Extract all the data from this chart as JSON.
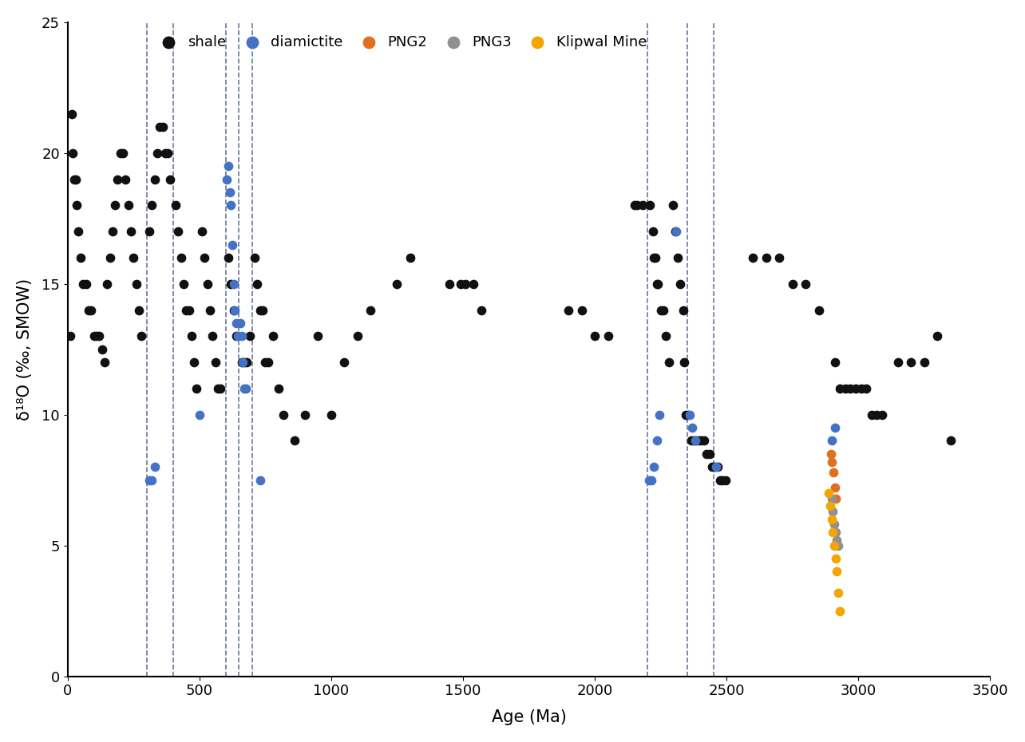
{
  "xlabel": "Age (Ma)",
  "ylabel": "δ¹⁸O (‰, SMOW)",
  "xlim": [
    0,
    3500
  ],
  "ylim": [
    0,
    25
  ],
  "xticks": [
    0,
    500,
    1000,
    1500,
    2000,
    2500,
    3000,
    3500
  ],
  "yticks": [
    0,
    5,
    10,
    15,
    20,
    25
  ],
  "dashed_lines": [
    300,
    400,
    600,
    650,
    700,
    2200,
    2350,
    2450
  ],
  "shale_x": [
    10,
    15,
    20,
    25,
    30,
    35,
    40,
    50,
    60,
    70,
    80,
    90,
    100,
    110,
    120,
    130,
    140,
    150,
    160,
    170,
    180,
    190,
    200,
    210,
    220,
    230,
    240,
    250,
    260,
    270,
    280,
    310,
    320,
    330,
    340,
    350,
    360,
    370,
    380,
    390,
    410,
    420,
    430,
    440,
    450,
    460,
    470,
    480,
    490,
    510,
    520,
    530,
    540,
    550,
    560,
    570,
    580,
    610,
    620,
    630,
    640,
    660,
    670,
    680,
    690,
    710,
    720,
    730,
    740,
    750,
    760,
    780,
    800,
    820,
    860,
    900,
    950,
    1000,
    1050,
    1100,
    1150,
    1250,
    1300,
    1450,
    1490,
    1510,
    1540,
    1570,
    1900,
    1950,
    2000,
    2050,
    2150,
    2160,
    2180,
    2210,
    2220,
    2225,
    2230,
    2235,
    2240,
    2250,
    2260,
    2270,
    2280,
    2295,
    2305,
    2315,
    2325,
    2335,
    2340,
    2345,
    2355,
    2365,
    2375,
    2385,
    2395,
    2405,
    2415,
    2425,
    2435,
    2445,
    2455,
    2465,
    2475,
    2485,
    2495,
    2600,
    2650,
    2700,
    2750,
    2800,
    2850,
    2910,
    2930,
    2950,
    2970,
    2990,
    3010,
    3030,
    3050,
    3070,
    3090,
    3150,
    3200,
    3250,
    3300,
    3350
  ],
  "shale_y": [
    13,
    21.5,
    20,
    19,
    19,
    18,
    17,
    16,
    15,
    15,
    14,
    14,
    13,
    13,
    13,
    12.5,
    12,
    15,
    16,
    17,
    18,
    19,
    20,
    20,
    19,
    18,
    17,
    16,
    15,
    14,
    13,
    17,
    18,
    19,
    20,
    21,
    21,
    20,
    20,
    19,
    18,
    17,
    16,
    15,
    14,
    14,
    13,
    12,
    11,
    17,
    16,
    15,
    14,
    13,
    12,
    11,
    11,
    16,
    15,
    14,
    13,
    12,
    12,
    12,
    13,
    16,
    15,
    14,
    14,
    12,
    12,
    13,
    11,
    10,
    9,
    10,
    13,
    10,
    12,
    13,
    14,
    15,
    16,
    15,
    15,
    15,
    15,
    14,
    14,
    14,
    13,
    13,
    18,
    18,
    18,
    18,
    17,
    16,
    16,
    15,
    15,
    14,
    14,
    13,
    12,
    18,
    17,
    16,
    15,
    14,
    12,
    10,
    10,
    9,
    9,
    9,
    9,
    9,
    9,
    8.5,
    8.5,
    8,
    8,
    8,
    7.5,
    7.5,
    7.5,
    16,
    16,
    16,
    15,
    15,
    14,
    12,
    11,
    11,
    11,
    11,
    11,
    11,
    10,
    10,
    10,
    12,
    12,
    12,
    13,
    9
  ],
  "diamictite_x": [
    310,
    320,
    330,
    500,
    605,
    610,
    615,
    620,
    625,
    630,
    635,
    640,
    645,
    655,
    660,
    665,
    670,
    675,
    730,
    2205,
    2215,
    2225,
    2235,
    2245,
    2310,
    2360,
    2370,
    2380,
    2460,
    2900,
    2910
  ],
  "diamictite_y": [
    7.5,
    7.5,
    8,
    10,
    19,
    19.5,
    18.5,
    18,
    16.5,
    15,
    14,
    13.5,
    13,
    13.5,
    13,
    12,
    11,
    11,
    7.5,
    7.5,
    7.5,
    8,
    9,
    10,
    17,
    10,
    9.5,
    9,
    8,
    9,
    9.5
  ],
  "png2_x": [
    2895,
    2900,
    2905,
    2910,
    2915
  ],
  "png2_y": [
    8.5,
    8.2,
    7.8,
    7.2,
    6.8
  ],
  "png3_x": [
    2898,
    2903,
    2908,
    2913,
    2918,
    2923
  ],
  "png3_y": [
    6.8,
    6.3,
    5.8,
    5.5,
    5.2,
    5.0
  ],
  "klipwal_x": [
    2888,
    2893,
    2898,
    2903,
    2908,
    2913,
    2918,
    2923,
    2928
  ],
  "klipwal_y": [
    7.0,
    6.5,
    6.0,
    5.5,
    5.0,
    4.5,
    4.0,
    3.2,
    2.5
  ],
  "colors": {
    "shale": "#111111",
    "diamictite": "#4472c4",
    "png2": "#e07020",
    "png3": "#909090",
    "klipwal": "#f5a500",
    "dashed": "#3a4a7a"
  },
  "marker_size": 55,
  "legend_fontsize": 13,
  "axis_label_fontsize": 15,
  "tick_fontsize": 13
}
